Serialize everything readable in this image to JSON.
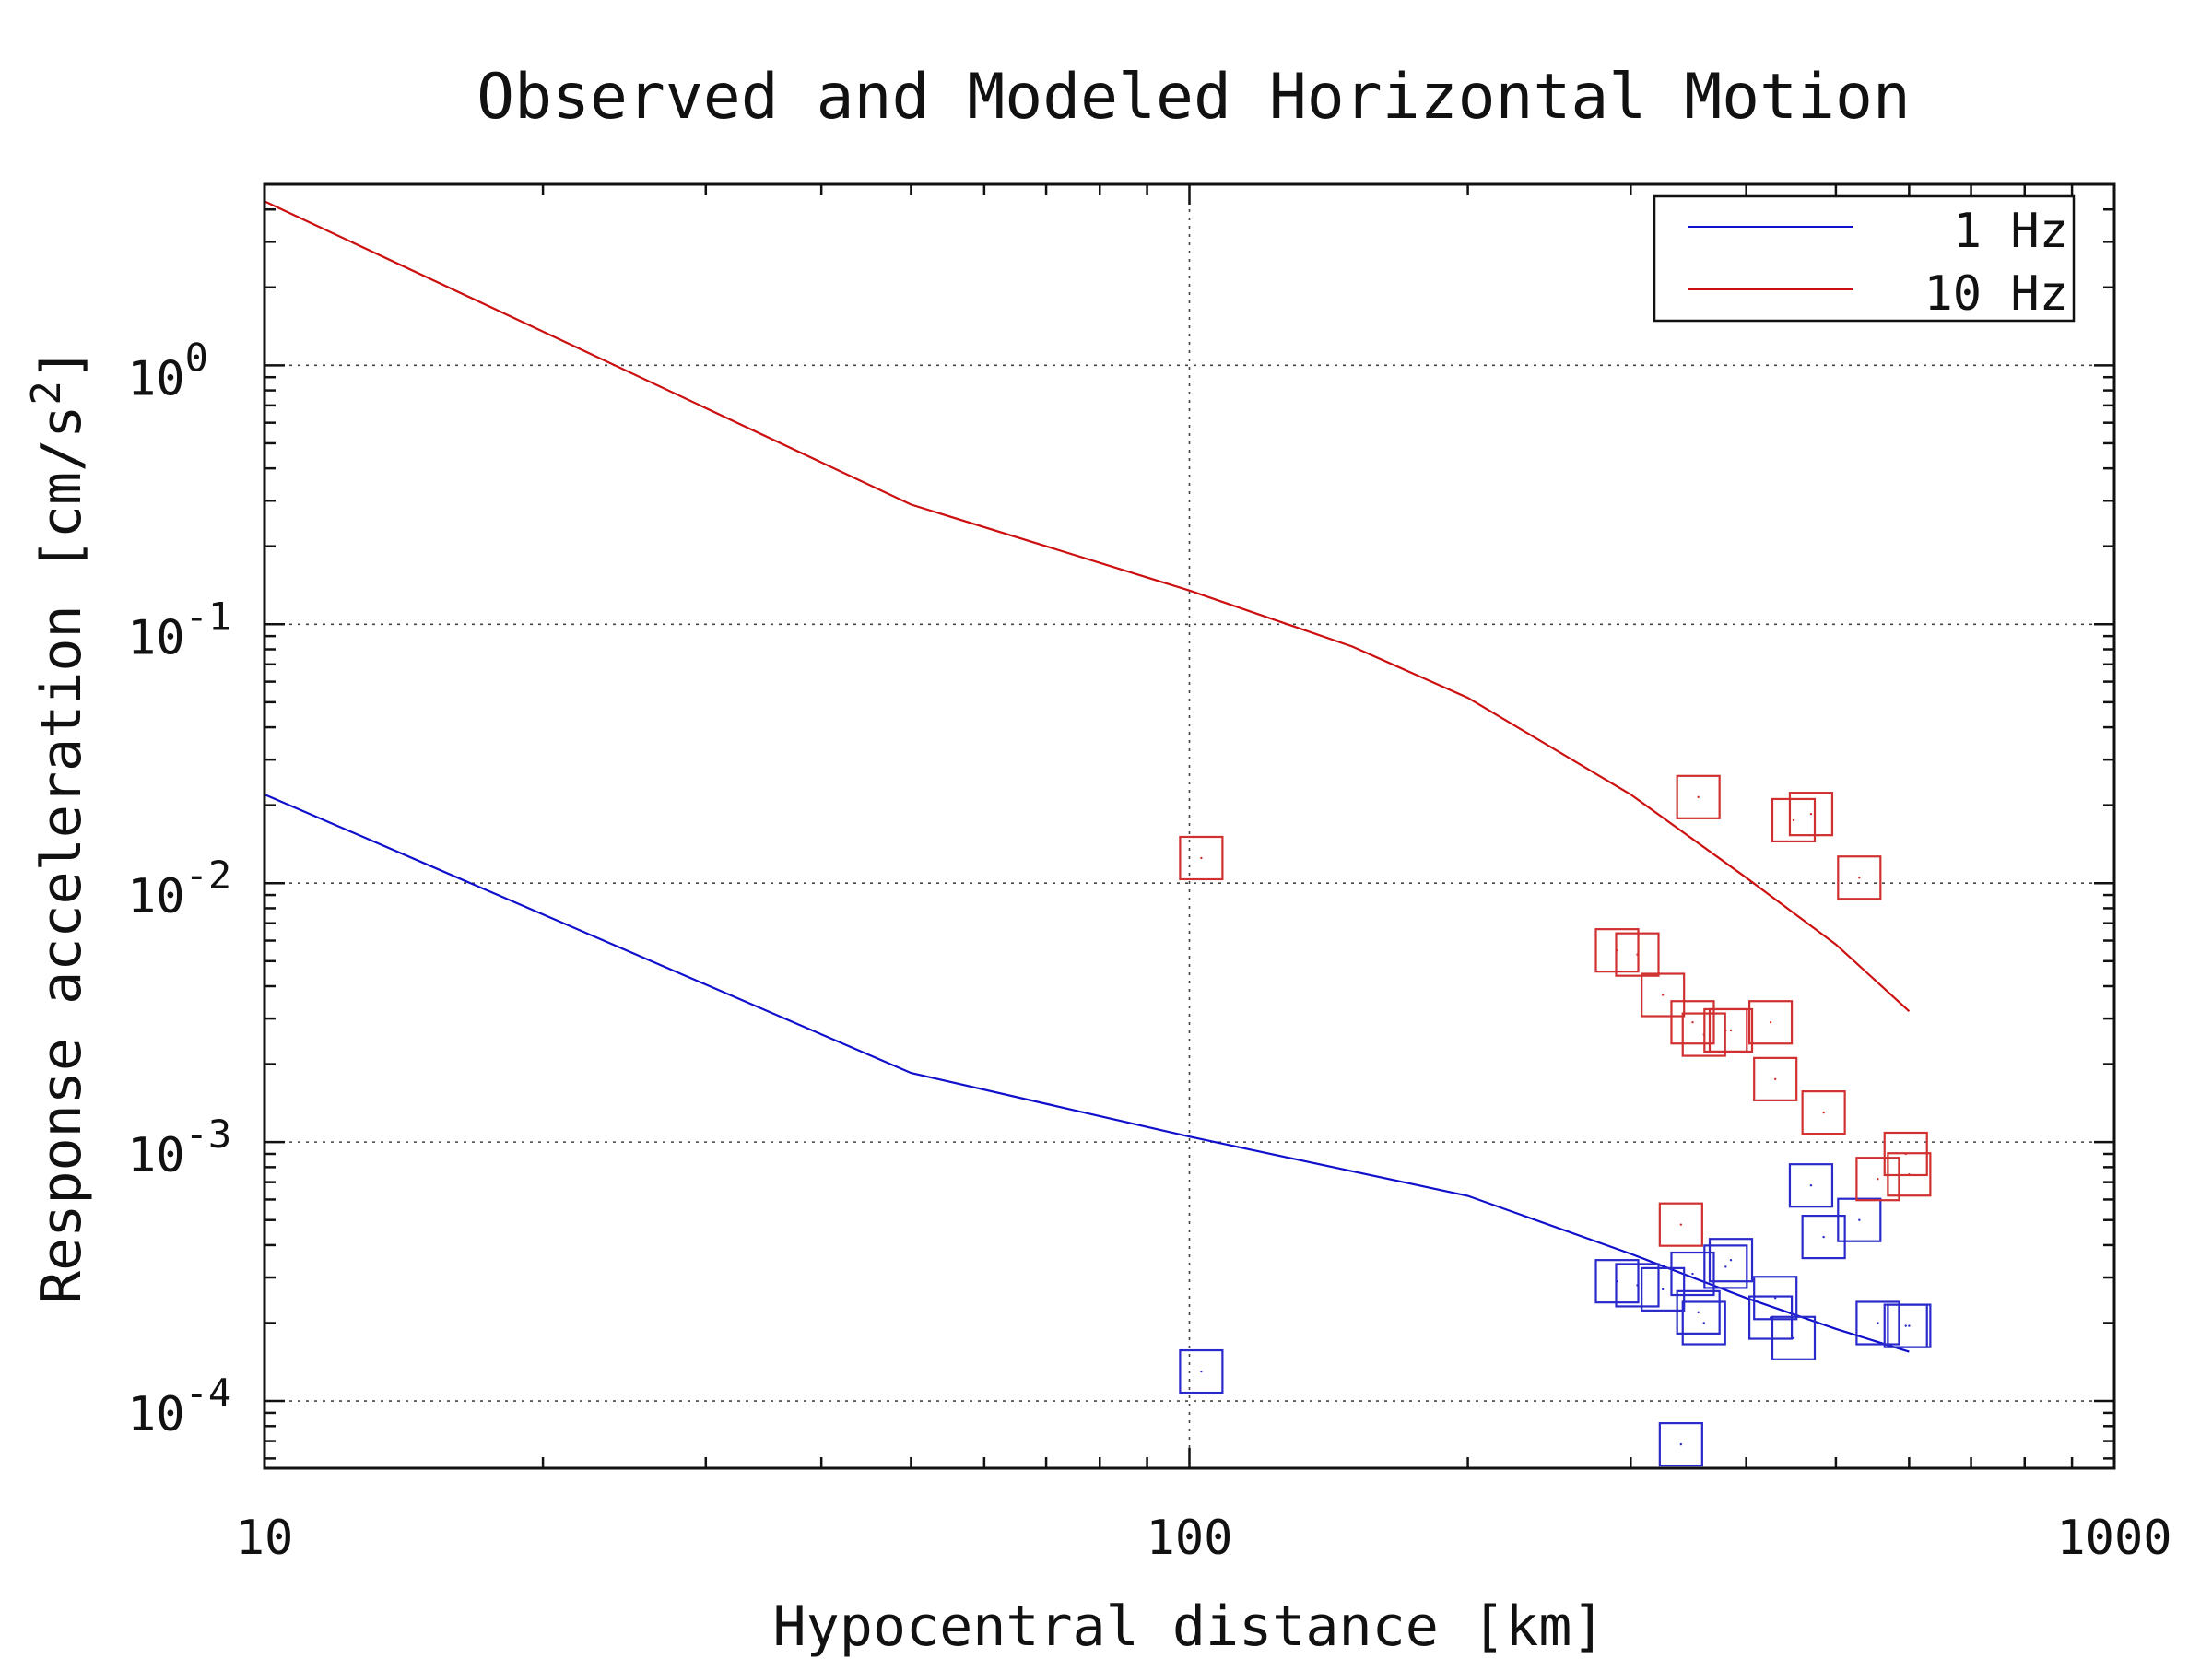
{
  "chart_data": {
    "type": "scatter",
    "title": "Observed and Modeled Horizontal Motion",
    "xlabel": "Hypocentral distance [km]",
    "ylabel_text": "Response acceleration [cm/s",
    "ylabel_sup": "2",
    "ylabel_close": "]",
    "x_scale": "log",
    "y_scale": "log",
    "xlim": [
      10,
      1000
    ],
    "ylim": [
      5.5e-05,
      5
    ],
    "grid": "dotted, at major ticks",
    "legend_position": "top-right",
    "x_tick_values": [
      10,
      100,
      1000
    ],
    "x_tick_labels": [
      "10",
      "100",
      "1000"
    ],
    "y_ticks": [
      {
        "value": 1,
        "base": "10",
        "exp": "0"
      },
      {
        "value": 0.1,
        "base": "10",
        "exp": "-1"
      },
      {
        "value": 0.01,
        "base": "10",
        "exp": "-2"
      },
      {
        "value": 0.001,
        "base": "10",
        "exp": "-3"
      },
      {
        "value": 0.0001,
        "base": "10",
        "exp": "-4"
      }
    ],
    "lines": [
      {
        "name": "1 Hz",
        "color": "#1010cc",
        "x": [
          10,
          50,
          100,
          200,
          300,
          400,
          500,
          600
        ],
        "y": [
          0.022,
          0.00185,
          0.00105,
          0.00062,
          0.00037,
          0.00025,
          0.00019,
          0.000155
        ]
      },
      {
        "name": "10 Hz",
        "color": "#cc1010",
        "x": [
          10,
          20,
          50,
          100,
          150,
          200,
          300,
          400,
          500,
          600
        ],
        "y": [
          4.3,
          1.35,
          0.29,
          0.135,
          0.082,
          0.052,
          0.022,
          0.0105,
          0.0058,
          0.0032
        ]
      }
    ],
    "observed": [
      {
        "color": "#2a2acc",
        "x": [
          103,
          290,
          305,
          325,
          340,
          350,
          355,
          360,
          380,
          385,
          425,
          430,
          450,
          470,
          485,
          530,
          555,
          595,
          600
        ],
        "y": [
          0.00013,
          0.00029,
          0.00028,
          0.00027,
          6.8e-05,
          0.00031,
          0.00022,
          0.0002,
          0.00033,
          0.00035,
          0.00021,
          0.00025,
          0.000175,
          0.00068,
          0.00043,
          0.0005,
          0.0002,
          0.000195,
          0.000195
        ]
      },
      {
        "color": "#d03030",
        "x": [
          103,
          290,
          305,
          325,
          340,
          350,
          355,
          360,
          380,
          385,
          425,
          430,
          450,
          470,
          485,
          530,
          555,
          595,
          600
        ],
        "y": [
          0.0125,
          0.0055,
          0.0053,
          0.0037,
          0.00048,
          0.0029,
          0.0215,
          0.0026,
          0.0027,
          0.0027,
          0.0029,
          0.00175,
          0.0175,
          0.0185,
          0.0013,
          0.0105,
          0.00072,
          0.0009,
          0.00075
        ]
      }
    ]
  }
}
